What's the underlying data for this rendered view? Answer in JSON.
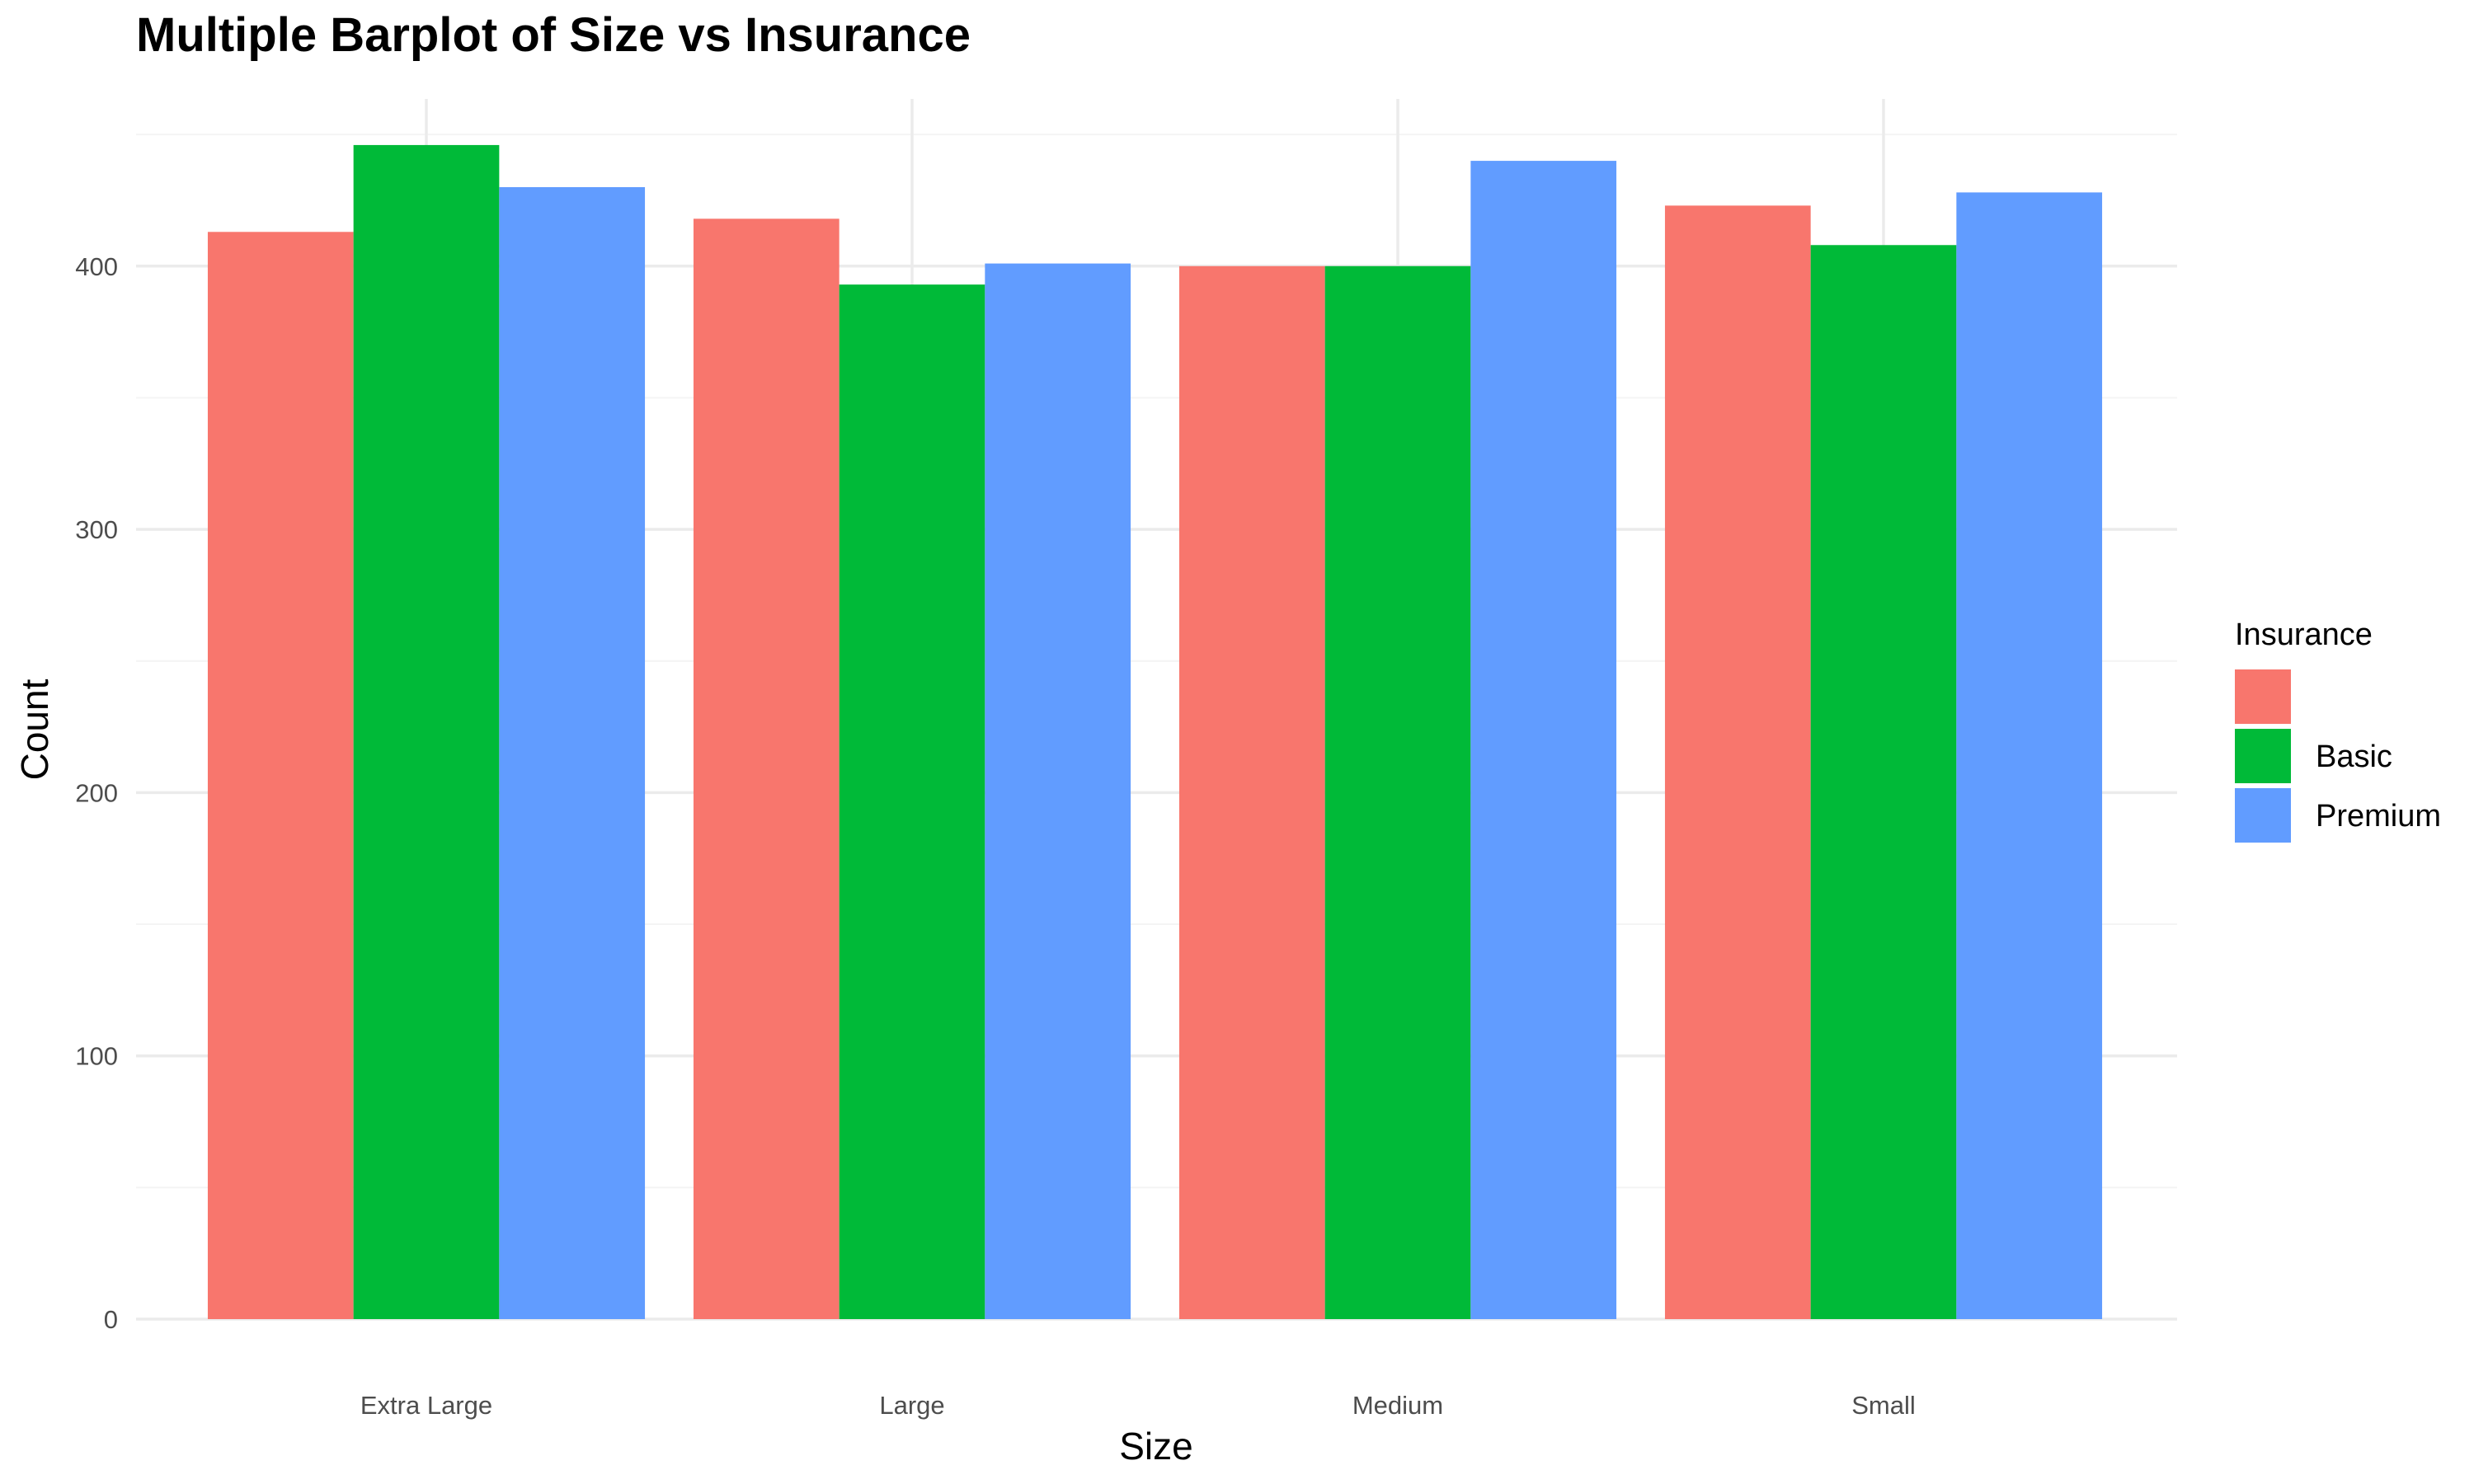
{
  "chart_data": {
    "type": "bar",
    "title": "Multiple Barplot of Size vs Insurance",
    "xlabel": "Size",
    "ylabel": "Count",
    "categories": [
      "Extra Large",
      "Large",
      "Medium",
      "Small"
    ],
    "series": [
      {
        "name": "",
        "color": "#F8766D",
        "values": [
          413,
          418,
          400,
          423
        ]
      },
      {
        "name": "Basic",
        "color": "#00BA38",
        "values": [
          446,
          393,
          400,
          408
        ]
      },
      {
        "name": "Premium",
        "color": "#619CFF",
        "values": [
          430,
          401,
          440,
          428
        ]
      }
    ],
    "ylim": [
      0,
      450
    ],
    "yticks": [
      0,
      100,
      200,
      300,
      400
    ],
    "ytick_labels": [
      "0",
      "100",
      "200",
      "300",
      "400"
    ],
    "grid": true,
    "legend": {
      "title": "Insurance",
      "position": "right"
    }
  }
}
